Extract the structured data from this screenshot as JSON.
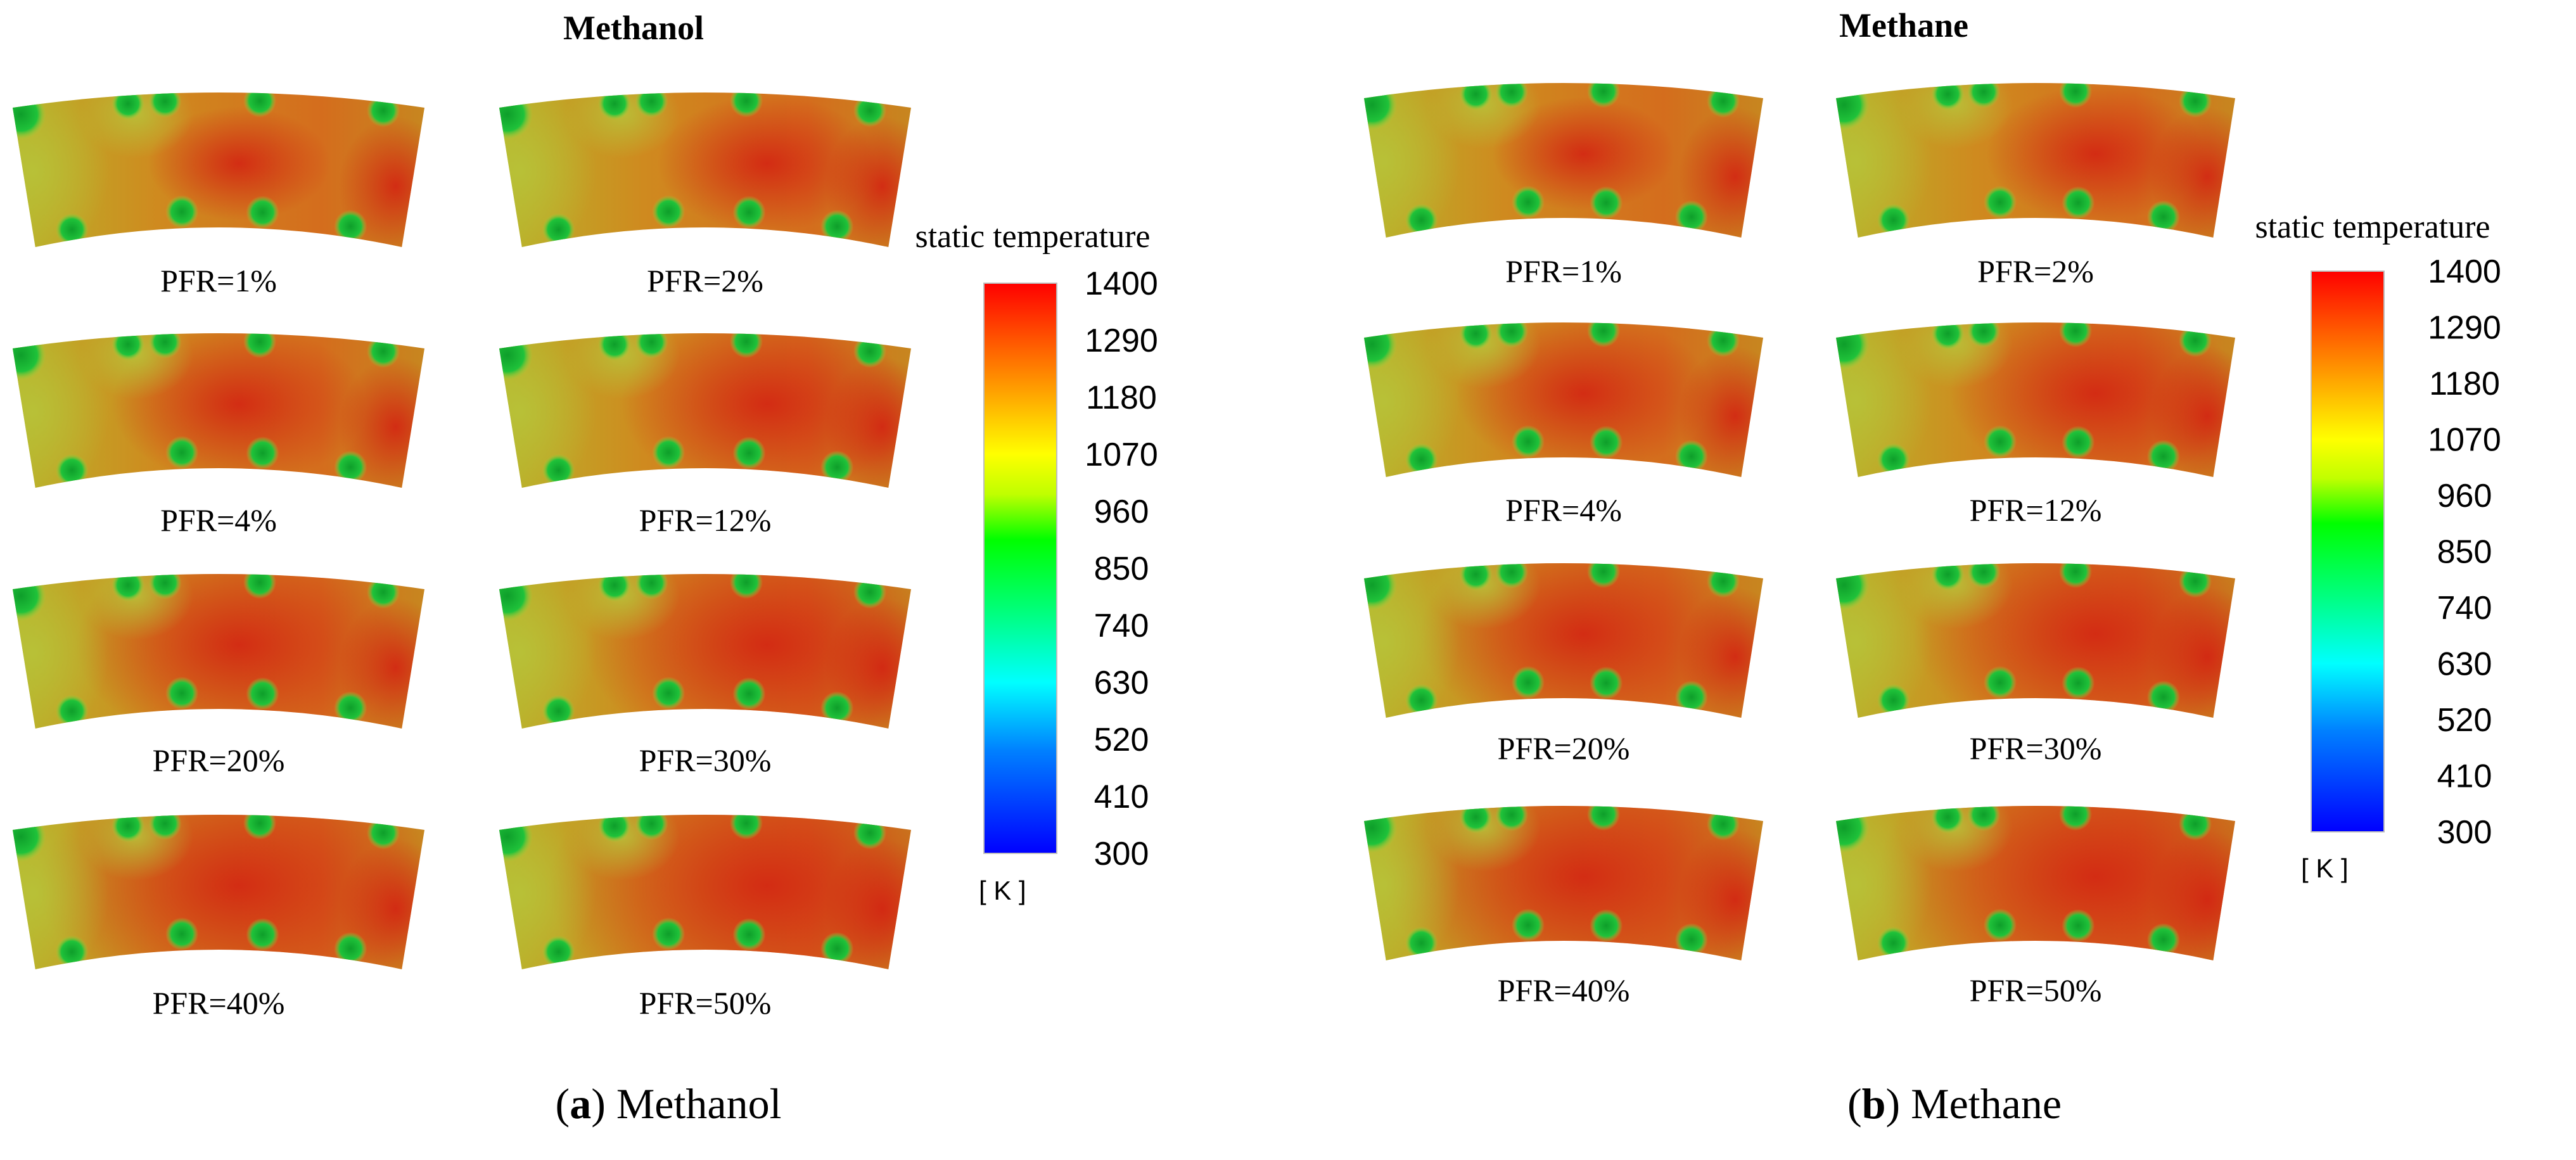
{
  "panels": [
    {
      "title": "Methanol",
      "caption_letter": "a",
      "caption_text": "Methanol",
      "colorbar": {
        "title": "static temperature",
        "unit": "[ K ]",
        "ticks": [
          "1400",
          "1290",
          "1180",
          "1070",
          "960",
          "850",
          "740",
          "630",
          "520",
          "410",
          "300"
        ]
      },
      "contours": [
        {
          "label": "PFR=1%"
        },
        {
          "label": "PFR=2%"
        },
        {
          "label": "PFR=4%"
        },
        {
          "label": "PFR=12%"
        },
        {
          "label": "PFR=20%"
        },
        {
          "label": "PFR=30%"
        },
        {
          "label": "PFR=40%"
        },
        {
          "label": "PFR=50%"
        }
      ]
    },
    {
      "title": "Methane",
      "caption_letter": "b",
      "caption_text": "Methane",
      "colorbar": {
        "title": "static temperature",
        "unit": "[ K ]",
        "ticks": [
          "1400",
          "1290",
          "1180",
          "1070",
          "960",
          "850",
          "740",
          "630",
          "520",
          "410",
          "300"
        ]
      },
      "contours": [
        {
          "label": "PFR=1%"
        },
        {
          "label": "PFR=2%"
        },
        {
          "label": "PFR=4%"
        },
        {
          "label": "PFR=12%"
        },
        {
          "label": "PFR=20%"
        },
        {
          "label": "PFR=30%"
        },
        {
          "label": "PFR=40%"
        },
        {
          "label": "PFR=50%"
        }
      ]
    }
  ]
}
